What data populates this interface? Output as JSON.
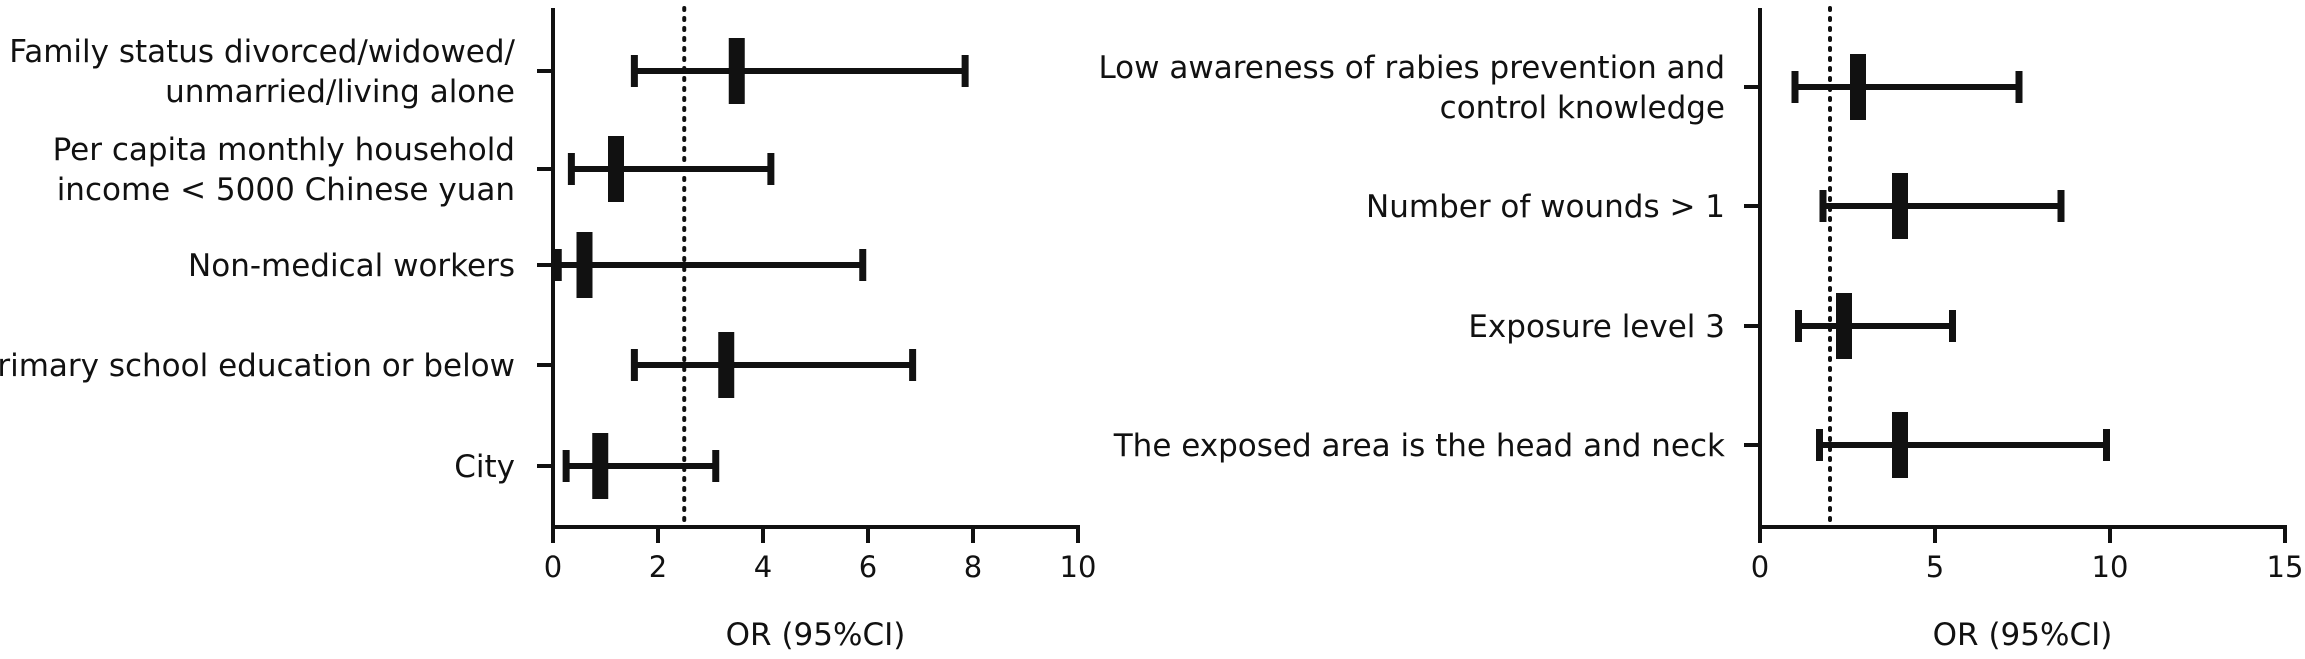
{
  "chart_data": [
    {
      "type": "forest",
      "xlabel": "OR (95%CI)",
      "xlim": [
        0,
        10
      ],
      "xticks": [
        0,
        2,
        4,
        6,
        8,
        10
      ],
      "reference_line": 2.5,
      "rows": [
        {
          "label": [
            "Family status divorced/widowed/",
            "unmarried/living alone"
          ],
          "or": 3.5,
          "lower": 1.55,
          "upper": 7.85
        },
        {
          "label": [
            "Per capita monthly household",
            "income < 5000 Chinese yuan"
          ],
          "or": 1.2,
          "lower": 0.35,
          "upper": 4.15
        },
        {
          "label": [
            "Non-medical workers"
          ],
          "or": 0.6,
          "lower": 0.1,
          "upper": 5.9
        },
        {
          "label": [
            "Primary school education or below"
          ],
          "or": 3.3,
          "lower": 1.55,
          "upper": 6.85
        },
        {
          "label": [
            "City"
          ],
          "or": 0.9,
          "lower": 0.25,
          "upper": 3.1
        }
      ]
    },
    {
      "type": "forest",
      "xlabel": "OR (95%CI)",
      "xlim": [
        0,
        15
      ],
      "xticks": [
        0,
        5,
        10,
        15
      ],
      "reference_line": 2.0,
      "rows": [
        {
          "label": [
            "Low awareness of rabies prevention and",
            "control knowledge"
          ],
          "or": 2.8,
          "lower": 1.0,
          "upper": 7.4
        },
        {
          "label": [
            "Number of wounds > 1"
          ],
          "or": 4.0,
          "lower": 1.8,
          "upper": 8.6
        },
        {
          "label": [
            "Exposure level 3"
          ],
          "or": 2.4,
          "lower": 1.1,
          "upper": 5.5
        },
        {
          "label": [
            "The exposed area is the head and neck"
          ],
          "or": 4.0,
          "lower": 1.7,
          "upper": 9.9
        }
      ]
    }
  ]
}
